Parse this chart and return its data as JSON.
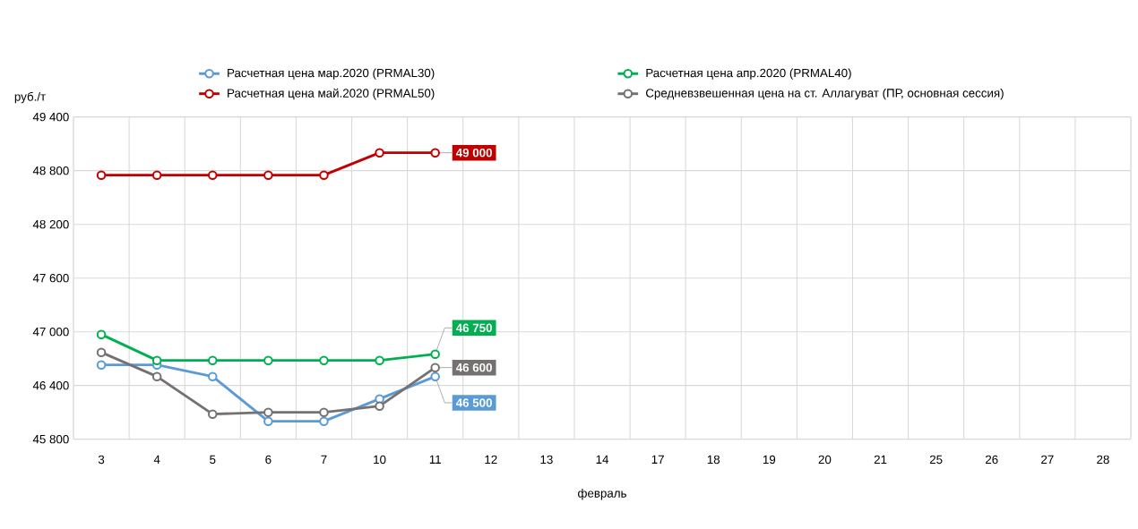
{
  "chart_data": {
    "type": "line",
    "xlabel": "февраль",
    "ylabel": "руб./т",
    "categories": [
      "3",
      "4",
      "5",
      "6",
      "7",
      "10",
      "11",
      "12",
      "13",
      "14",
      "17",
      "18",
      "19",
      "20",
      "21",
      "25",
      "26",
      "27",
      "28"
    ],
    "series": [
      {
        "name": "Расчетная цена мар.2020 (PRMAL30)",
        "color": "#5b9bd5",
        "values": [
          46630,
          46630,
          46500,
          46000,
          46000,
          46250,
          46500,
          null,
          null,
          null,
          null,
          null,
          null,
          null,
          null,
          null,
          null,
          null,
          null
        ],
        "value_labels": [
          null,
          null,
          null,
          null,
          null,
          null,
          "46 500",
          null,
          null,
          null,
          null,
          null,
          null,
          null,
          null,
          null,
          null,
          null,
          null
        ]
      },
      {
        "name": "Расчетная цена апр.2020 (PRMAL40)",
        "color": "#00b050",
        "values": [
          46970,
          46680,
          46680,
          46680,
          46680,
          46680,
          46750,
          null,
          null,
          null,
          null,
          null,
          null,
          null,
          null,
          null,
          null,
          null,
          null
        ],
        "value_labels": [
          null,
          null,
          null,
          null,
          null,
          null,
          "46 750",
          null,
          null,
          null,
          null,
          null,
          null,
          null,
          null,
          null,
          null,
          null,
          null
        ]
      },
      {
        "name": "Расчетная цена май.2020 (PRMAL50)",
        "color": "#c00000",
        "values": [
          48750,
          48750,
          48750,
          48750,
          48750,
          49000,
          49000,
          null,
          null,
          null,
          null,
          null,
          null,
          null,
          null,
          null,
          null,
          null,
          null
        ],
        "value_labels": [
          null,
          null,
          null,
          null,
          null,
          null,
          "49 000",
          null,
          null,
          null,
          null,
          null,
          null,
          null,
          null,
          null,
          null,
          null,
          null
        ]
      },
      {
        "name": "Средневзвешенная  цена на ст. Аллагуват (ПР, основная сессия)",
        "color": "#767171",
        "values": [
          46770,
          46500,
          46080,
          46100,
          46100,
          46170,
          46600,
          null,
          null,
          null,
          null,
          null,
          null,
          null,
          null,
          null,
          null,
          null,
          null
        ],
        "value_labels": [
          null,
          null,
          null,
          null,
          null,
          null,
          "46 600",
          null,
          null,
          null,
          null,
          null,
          null,
          null,
          null,
          null,
          null,
          null,
          null
        ]
      }
    ],
    "ylim": [
      45800,
      49400
    ],
    "yticks": [
      {
        "value": 45800,
        "label": "45 800"
      },
      {
        "value": 46400,
        "label": "46 400"
      },
      {
        "value": 47000,
        "label": "47 000"
      },
      {
        "value": 47600,
        "label": "47 600"
      },
      {
        "value": 48200,
        "label": "48 200"
      },
      {
        "value": 48800,
        "label": "48 800"
      },
      {
        "value": 49400,
        "label": "49 400"
      }
    ],
    "grid": true,
    "legend": "top",
    "marker": "circle",
    "line_style": "solid"
  }
}
